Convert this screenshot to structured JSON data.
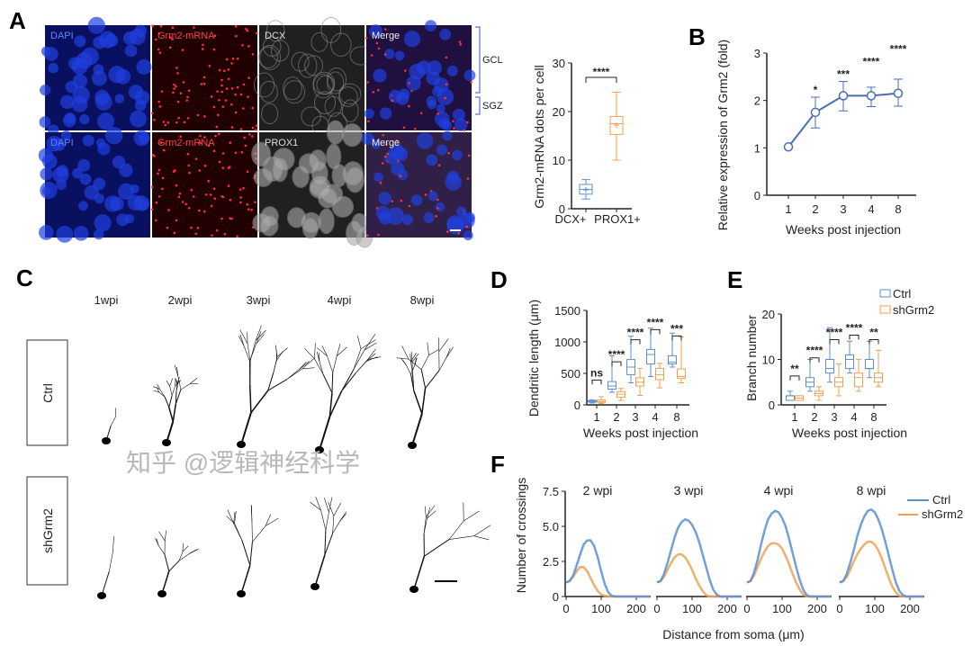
{
  "panel_letters": {
    "A": "A",
    "B": "B",
    "C": "C",
    "D": "D",
    "E": "E",
    "F": "F"
  },
  "colors": {
    "ctrl": "#5b8fd0",
    "sh": "#f0a050",
    "line": "#4a6fb0",
    "dapi": "#1020c0",
    "mrna": "#e02020"
  },
  "panel_a": {
    "row1_labels": [
      "DAPI",
      "Grm2-mRNA",
      "DCX",
      "Merge"
    ],
    "row2_labels": [
      "DAPI",
      "Grm2-mRNA",
      "PROX1",
      "Merge"
    ],
    "region_labels": [
      "GCL",
      "SGZ"
    ]
  },
  "panel_c": {
    "columns": [
      "1wpi",
      "2wpi",
      "3wpi",
      "4wpi",
      "8wpi"
    ],
    "rows": [
      "Ctrl",
      "shGrm2"
    ]
  },
  "watermark": "知乎 @逻辑神经科学",
  "chart_data": [
    {
      "panel": "A",
      "type": "box",
      "ylabel": "Grm2-mRNA dots per cell",
      "ylim": [
        0,
        30
      ],
      "yticks": [
        "0",
        "10",
        "20",
        "30"
      ],
      "categories": [
        "DCX+",
        "PROX1+"
      ],
      "boxes": [
        {
          "min": 2,
          "q1": 3,
          "median": 4,
          "q3": 5,
          "max": 6,
          "mean": 3.9
        },
        {
          "min": 10,
          "q1": 15.3,
          "median": 17.5,
          "q3": 19,
          "max": 24,
          "mean": 17.2
        }
      ],
      "significance": "****"
    },
    {
      "panel": "B",
      "type": "line",
      "xlabel": "Weeks post injection",
      "ylabel": "Relative expression of Grm2 (fold)",
      "ylim": [
        0,
        3
      ],
      "yticks": [
        "0",
        "1",
        "2",
        "3"
      ],
      "categories": [
        "1",
        "2",
        "3",
        "4",
        "8"
      ],
      "values": [
        1.02,
        1.75,
        2.1,
        2.1,
        2.15
      ],
      "err_low": [
        1.02,
        1.42,
        1.78,
        1.87,
        1.88
      ],
      "err_high": [
        1.02,
        2.07,
        2.4,
        2.28,
        2.45
      ],
      "significance": [
        "",
        "*",
        "***",
        "****",
        "****"
      ]
    },
    {
      "panel": "D",
      "type": "box",
      "xlabel": "Weeks post injection",
      "ylabel": "Dendritic length (μm)",
      "ylim": [
        0,
        1500
      ],
      "yticks": [
        "0",
        "500",
        "1000",
        "1500"
      ],
      "categories": [
        "1",
        "2",
        "3",
        "4",
        "8"
      ],
      "series": [
        {
          "name": "Ctrl",
          "boxes": [
            [
              30,
              45,
              55,
              70,
              80
            ],
            [
              200,
              250,
              300,
              370,
              780
            ],
            [
              350,
              480,
              600,
              720,
              1090
            ],
            [
              450,
              650,
              800,
              880,
              1220
            ],
            [
              600,
              650,
              680,
              780,
              1140
            ]
          ]
        },
        {
          "name": "shGrm2",
          "boxes": [
            [
              20,
              40,
              55,
              80,
              130
            ],
            [
              70,
              120,
              170,
              210,
              260
            ],
            [
              150,
              300,
              360,
              430,
              580
            ],
            [
              270,
              400,
              480,
              580,
              660
            ],
            [
              350,
              420,
              450,
              570,
              1080
            ]
          ]
        }
      ],
      "significance": [
        "ns",
        "****",
        "****",
        "****",
        "***"
      ]
    },
    {
      "panel": "E",
      "type": "box",
      "xlabel": "Weeks post injection",
      "ylabel": "Branch number",
      "ylim": [
        0,
        20
      ],
      "yticks": [
        "0",
        "10",
        "20"
      ],
      "categories": [
        "1",
        "2",
        "3",
        "4",
        "8"
      ],
      "legend": [
        "Ctrl",
        "shGrm2"
      ],
      "series": [
        {
          "name": "Ctrl",
          "boxes": [
            [
              1,
              1,
              2,
              2,
              3
            ],
            [
              3,
              4,
              5,
              6,
              10
            ],
            [
              5,
              7,
              8,
              10,
              17
            ],
            [
              7,
              8,
              10,
              11,
              14
            ],
            [
              6,
              8,
              8,
              10,
              14
            ]
          ]
        },
        {
          "name": "shGrm2",
          "boxes": [
            [
              1,
              1,
              1.5,
              2,
              2
            ],
            [
              1,
              2,
              2.5,
              3,
              4
            ],
            [
              2,
              4,
              5,
              6,
              9
            ],
            [
              3,
              4,
              6,
              7,
              10
            ],
            [
              4,
              5,
              6,
              7,
              12
            ]
          ]
        }
      ],
      "significance": [
        "**",
        "****",
        "****",
        "****",
        "**"
      ]
    },
    {
      "panel": "F",
      "type": "line",
      "xlabel": "Distance from soma (μm)",
      "ylabel": "Number of crossings",
      "ylim": [
        0,
        7.5
      ],
      "yticks": [
        "0",
        "2.5",
        "5.0",
        "7.5"
      ],
      "xticks": [
        "0",
        "100",
        "200"
      ],
      "x": [
        0,
        10,
        20,
        30,
        40,
        50,
        60,
        70,
        80,
        90,
        100,
        110,
        120,
        130,
        140,
        150,
        160,
        170,
        180,
        190,
        200,
        210,
        220,
        230,
        240
      ],
      "legend": [
        "Ctrl",
        "shGrm2"
      ],
      "subplots": [
        {
          "title": "2 wpi",
          "ctrl": [
            1,
            1.1,
            1.5,
            2.2,
            3.0,
            3.7,
            4.0,
            4.0,
            3.6,
            2.8,
            1.8,
            0.9,
            0.3,
            0.05,
            0,
            0,
            0,
            0,
            0,
            0,
            0,
            0,
            0,
            0,
            0
          ],
          "sh": [
            1,
            1.1,
            1.4,
            1.8,
            2.1,
            2.1,
            1.8,
            1.3,
            0.8,
            0.4,
            0.15,
            0.05,
            0,
            0,
            0,
            0,
            0,
            0,
            0,
            0,
            0,
            0,
            0,
            0,
            0
          ]
        },
        {
          "title": "3 wpi",
          "ctrl": [
            1,
            1.1,
            1.6,
            2.4,
            3.3,
            4.2,
            4.9,
            5.3,
            5.5,
            5.4,
            5.1,
            4.6,
            3.9,
            3.0,
            2.1,
            1.2,
            0.5,
            0.15,
            0,
            0,
            0,
            0,
            0,
            0,
            0
          ],
          "sh": [
            1,
            1.1,
            1.4,
            1.9,
            2.4,
            2.8,
            3.0,
            3.0,
            2.8,
            2.4,
            1.9,
            1.3,
            0.8,
            0.4,
            0.1,
            0,
            0,
            0,
            0,
            0,
            0,
            0,
            0,
            0,
            0
          ]
        },
        {
          "title": "4 wpi",
          "ctrl": [
            1,
            1.1,
            1.7,
            2.6,
            3.7,
            4.7,
            5.5,
            5.9,
            6.1,
            6.0,
            5.6,
            5.0,
            4.1,
            3.1,
            2.1,
            1.2,
            0.5,
            0.1,
            0,
            0,
            0,
            0,
            0,
            0,
            0
          ],
          "sh": [
            1,
            1.1,
            1.5,
            2.1,
            2.7,
            3.2,
            3.6,
            3.8,
            3.8,
            3.7,
            3.4,
            2.9,
            2.3,
            1.6,
            1.0,
            0.5,
            0.15,
            0,
            0,
            0,
            0,
            0,
            0,
            0,
            0
          ]
        },
        {
          "title": "8 wpi",
          "ctrl": [
            1,
            1.1,
            1.6,
            2.4,
            3.3,
            4.3,
            5.1,
            5.7,
            6.1,
            6.2,
            6.0,
            5.5,
            4.8,
            3.9,
            2.9,
            1.9,
            1.0,
            0.4,
            0.1,
            0,
            0,
            0,
            0,
            0,
            0
          ],
          "sh": [
            1,
            1.1,
            1.4,
            1.9,
            2.5,
            3.0,
            3.4,
            3.7,
            3.9,
            3.9,
            3.7,
            3.3,
            2.7,
            2.0,
            1.3,
            0.7,
            0.3,
            0.05,
            0,
            0,
            0,
            0,
            0,
            0,
            0
          ]
        }
      ]
    }
  ]
}
